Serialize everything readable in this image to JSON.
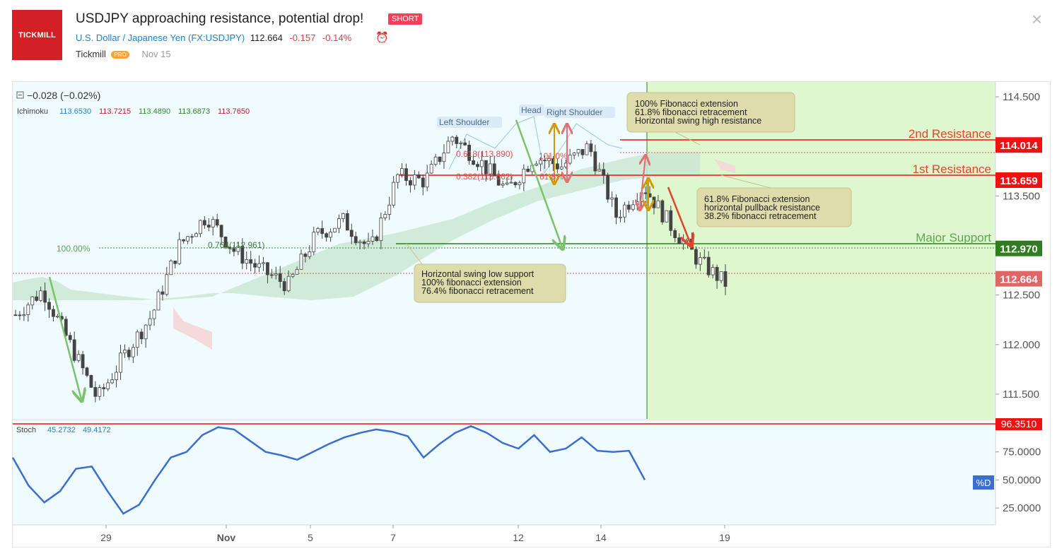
{
  "header": {
    "logo_text": "TICKMILL",
    "title": "USDJPY approaching resistance, potential drop!",
    "badge": "SHORT",
    "symbol_name": "U.S. Dollar / Japanese Yen",
    "symbol_code": "(FX:USDJPY)",
    "price": "112.664",
    "change": "-0.157",
    "change_pct": "-0.14%",
    "author": "Tickmill",
    "author_badge": "PRO",
    "date": "Nov 15",
    "close_glyph": "×",
    "alarm_glyph": "⏰"
  },
  "colors": {
    "red": "#f21010",
    "green": "#2f7d1e",
    "orange_red": "#e2452c",
    "blue": "#1e82c8",
    "cloud_green": "#cbe8d3",
    "cloud_red": "#f4d6d6",
    "forecast_bg": "#dff7cf",
    "chart_bg": "#effbfe"
  },
  "chart_data": [
    {
      "type": "candlestick",
      "title": "USDJPY",
      "ylim": [
        111.25,
        114.65
      ],
      "yticks": [
        "114.500",
        "113.500",
        "112.500",
        "112.000",
        "111.500"
      ],
      "yticks_values": [
        114.5,
        113.5,
        112.5,
        112.0,
        111.5
      ],
      "xticks": [
        "29",
        "Nov",
        "5",
        "7",
        "12",
        "14",
        "19"
      ],
      "legend_change": "−0.028 (−0.02%)",
      "ichimoku": {
        "label": "Ichimoku",
        "values": [
          "113.6530",
          "113.7215",
          "113.4890",
          "113.6873",
          "113.7650"
        ],
        "value_colors": [
          "#1e82c8",
          "#b5202e",
          "#2f8c2a",
          "#2f7d1e",
          "#b5202e"
        ]
      },
      "close_path": [
        112.3,
        112.55,
        112.0,
        111.45,
        111.9,
        112.3,
        113.0,
        113.3,
        112.95,
        112.75,
        112.6,
        113.1,
        113.25,
        112.95,
        113.7,
        113.65,
        114.1,
        113.85,
        113.55,
        113.9,
        113.8,
        114.0,
        113.3,
        113.6,
        113.2,
        112.85,
        112.62
      ],
      "levels": [
        {
          "name": "2nd Resistance",
          "price": 114.014,
          "label": "114.014"
        },
        {
          "name": "1st Resistance",
          "price": 113.659,
          "label": "113.659"
        },
        {
          "name": "Major Support",
          "price": 112.97,
          "label": "112.970"
        },
        {
          "name": "Current Price",
          "price": 112.664,
          "label": "112.664"
        }
      ],
      "fib_labels": [
        "0.618(113.890)",
        "0.382(113.662)",
        "101.0%",
        "61.8%",
        "0.764(112.961)",
        "100.00%"
      ],
      "pattern_labels": [
        "Left Shoulder",
        "Head",
        "Right Shoulder"
      ],
      "annotations": [
        {
          "id": "top",
          "lines": [
            "100% Fibonacci extension",
            "61.8% fibonacci retracement",
            "Horizontal swing high resistance"
          ]
        },
        {
          "id": "mid",
          "lines": [
            "61.8% Fibonacci extension",
            "horizontal pullback resistance",
            "38.2% fibonacci retracement"
          ]
        },
        {
          "id": "low",
          "lines": [
            "Horizontal swing low support",
            "100% fibonacci extension",
            "76.4% fibonacci retracement"
          ]
        }
      ]
    },
    {
      "type": "line",
      "title": "Stoch",
      "legend_values": [
        "45.2732",
        "49.4172"
      ],
      "ylim": [
        10,
        100
      ],
      "yticks": [
        "75.0000",
        "50.0000",
        "25.0000"
      ],
      "yticks_values": [
        75,
        50,
        25
      ],
      "ref_line": {
        "value": 96.351,
        "label": "96.3510"
      },
      "series_label": "%D",
      "series": [
        {
          "name": "%D",
          "values": [
            70,
            45,
            30,
            40,
            60,
            62,
            40,
            20,
            28,
            50,
            70,
            75,
            90,
            97,
            95,
            85,
            75,
            72,
            68,
            75,
            82,
            88,
            92,
            95,
            93,
            89,
            70,
            82,
            92,
            98,
            92,
            83,
            78,
            90,
            75,
            78,
            88,
            76,
            75,
            76,
            50
          ]
        }
      ]
    }
  ]
}
